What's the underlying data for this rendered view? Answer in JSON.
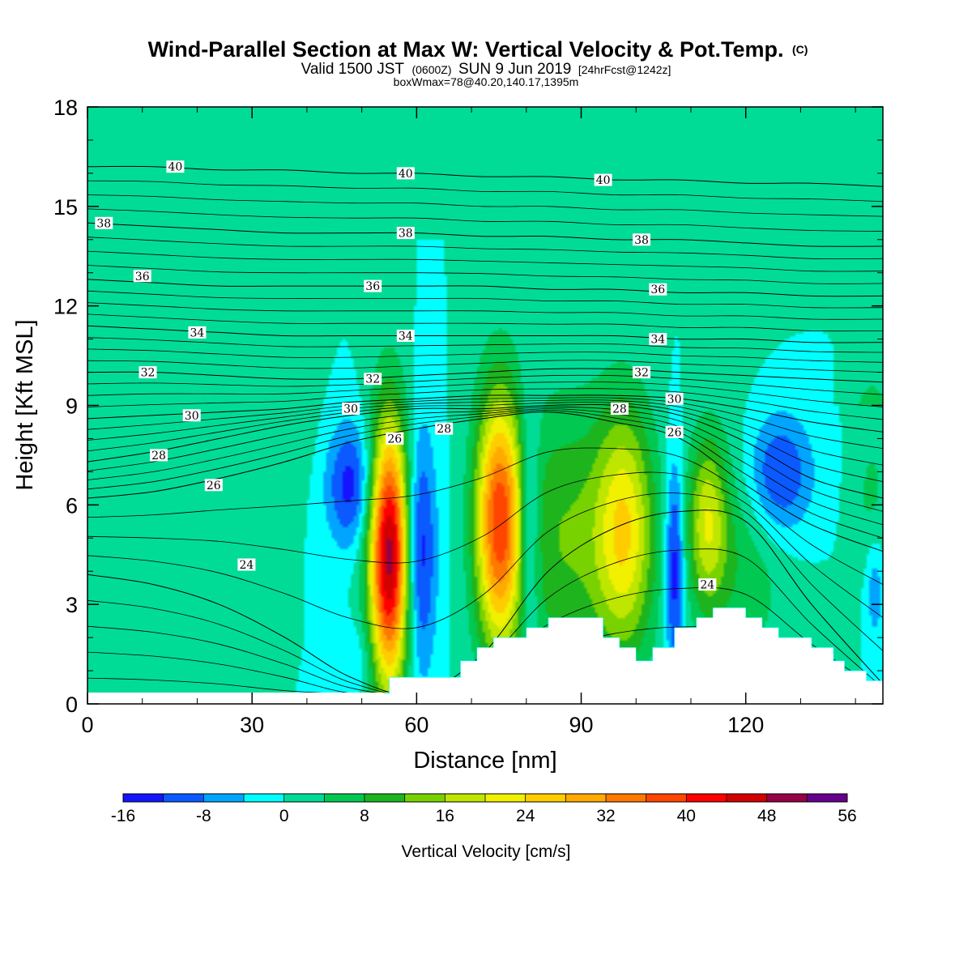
{
  "header": {
    "title": "Wind-Parallel Section at Max W: Vertical Velocity & Pot.Temp.",
    "title_mark": "(C)",
    "valid_prefix": "Valid 1500 JST",
    "valid_zulu": "(0600Z)",
    "valid_date": "SUN 9 Jun 2019",
    "forecast": "[24hrFcst@1242z]",
    "box_info": "boxWmax=78@40.20,140.17,1395m"
  },
  "chart_data": {
    "type": "heatmap",
    "title": "Wind-Parallel Section at Max W: Vertical Velocity & Pot.Temp.",
    "xlabel": "Distance [nm]",
    "ylabel": "Height [Kft MSL]",
    "xlim": [
      0,
      145
    ],
    "ylim": [
      0,
      18
    ],
    "x_ticks": [
      0,
      30,
      60,
      90,
      120
    ],
    "y_ticks": [
      0,
      3,
      6,
      9,
      12,
      15,
      18
    ],
    "colorbar": {
      "title": "Vertical Velocity [cm/s]",
      "ticks": [
        -16,
        -8,
        0,
        8,
        16,
        24,
        32,
        40,
        48,
        56
      ],
      "levels": [
        -16,
        -12,
        -8,
        -4,
        0,
        4,
        8,
        12,
        16,
        20,
        24,
        28,
        32,
        36,
        40,
        44,
        48,
        52,
        56
      ],
      "colors": [
        "#1414ff",
        "#0a5aff",
        "#00a5ff",
        "#00ffff",
        "#00dc96",
        "#00c850",
        "#1eb41e",
        "#78d200",
        "#bee600",
        "#f0f000",
        "#ffcc00",
        "#ffaa00",
        "#ff7800",
        "#ff4600",
        "#ff0000",
        "#d20000",
        "#960046",
        "#64008c"
      ]
    },
    "theta_contours": [
      {
        "value": 24,
        "heights": [
          3.9,
          3.6,
          3.0,
          2.0,
          0.8,
          0.3,
          1.5,
          4.0,
          5.3,
          5.8,
          5.5,
          3.0,
          0.6
        ]
      },
      {
        "value": 26,
        "heights": [
          6.2,
          6.4,
          6.8,
          7.3,
          7.9,
          8.3,
          8.6,
          8.8,
          8.5,
          8.0,
          6.6,
          5.4,
          4.6
        ]
      },
      {
        "value": 28,
        "heights": [
          7.3,
          7.6,
          8.0,
          8.4,
          8.7,
          8.9,
          8.9,
          9.0,
          9.0,
          8.7,
          7.9,
          6.8,
          6.2
        ]
      },
      {
        "value": 30,
        "heights": [
          8.6,
          8.7,
          8.8,
          8.9,
          9.1,
          9.2,
          9.3,
          9.3,
          9.3,
          9.2,
          8.9,
          8.5,
          8.2
        ]
      },
      {
        "value": 32,
        "heights": [
          10.0,
          10.0,
          9.9,
          9.8,
          9.8,
          9.9,
          10.0,
          10.1,
          10.1,
          10.0,
          9.9,
          9.8,
          9.7
        ]
      },
      {
        "value": 34,
        "heights": [
          11.4,
          11.3,
          11.2,
          11.1,
          11.1,
          11.1,
          11.1,
          11.1,
          11.1,
          11.0,
          11.0,
          10.9,
          10.9
        ]
      },
      {
        "value": 36,
        "heights": [
          12.8,
          12.7,
          12.6,
          12.6,
          12.6,
          12.6,
          12.6,
          12.5,
          12.5,
          12.4,
          12.4,
          12.3,
          12.3
        ]
      },
      {
        "value": 38,
        "heights": [
          14.5,
          14.4,
          14.3,
          14.2,
          14.2,
          14.2,
          14.1,
          14.1,
          14.0,
          14.0,
          13.9,
          13.8,
          13.8
        ]
      },
      {
        "value": 40,
        "heights": [
          16.2,
          16.2,
          16.1,
          16.1,
          16.0,
          16.0,
          15.9,
          15.9,
          15.8,
          15.8,
          15.7,
          15.7,
          15.6
        ]
      }
    ],
    "theta_x": [
      0,
      12,
      24,
      36,
      48,
      60,
      72,
      84,
      96,
      108,
      120,
      132,
      145
    ],
    "theta_labels": [
      {
        "text": "40",
        "x": 16,
        "y": 16.2
      },
      {
        "text": "40",
        "x": 58,
        "y": 16.0
      },
      {
        "text": "40",
        "x": 94,
        "y": 15.8
      },
      {
        "text": "38",
        "x": 3,
        "y": 14.5
      },
      {
        "text": "38",
        "x": 58,
        "y": 14.2
      },
      {
        "text": "38",
        "x": 101,
        "y": 14.0
      },
      {
        "text": "36",
        "x": 10,
        "y": 12.9
      },
      {
        "text": "36",
        "x": 52,
        "y": 12.6
      },
      {
        "text": "36",
        "x": 104,
        "y": 12.5
      },
      {
        "text": "34",
        "x": 20,
        "y": 11.2
      },
      {
        "text": "34",
        "x": 58,
        "y": 11.1
      },
      {
        "text": "34",
        "x": 104,
        "y": 11.0
      },
      {
        "text": "32",
        "x": 11,
        "y": 10.0
      },
      {
        "text": "32",
        "x": 52,
        "y": 9.8
      },
      {
        "text": "32",
        "x": 101,
        "y": 10.0
      },
      {
        "text": "30",
        "x": 19,
        "y": 8.7
      },
      {
        "text": "30",
        "x": 48,
        "y": 8.9
      },
      {
        "text": "30",
        "x": 107,
        "y": 9.2
      },
      {
        "text": "28",
        "x": 13,
        "y": 7.5
      },
      {
        "text": "28",
        "x": 65,
        "y": 8.3
      },
      {
        "text": "28",
        "x": 97,
        "y": 8.9
      },
      {
        "text": "26",
        "x": 23,
        "y": 6.6
      },
      {
        "text": "26",
        "x": 56,
        "y": 8.0
      },
      {
        "text": "26",
        "x": 107,
        "y": 8.2
      },
      {
        "text": "24",
        "x": 29,
        "y": 4.2
      },
      {
        "text": "24",
        "x": 113,
        "y": 3.6
      }
    ],
    "w_features": [
      {
        "x": 55,
        "y": 4.5,
        "sx": 2.6,
        "sy": 2.8,
        "amp": 50
      },
      {
        "x": 60.5,
        "y": 4.6,
        "sx": 2.1,
        "sy": 2.6,
        "amp": -16
      },
      {
        "x": 48,
        "y": 6.6,
        "sx": 3.2,
        "sy": 1.3,
        "amp": -14
      },
      {
        "x": 50,
        "y": 1.4,
        "sx": 2.5,
        "sy": 0.9,
        "amp": -4
      },
      {
        "x": 75,
        "y": 5.5,
        "sx": 3.0,
        "sy": 2.7,
        "amp": 37
      },
      {
        "x": 80.5,
        "y": 5.4,
        "sx": 1.4,
        "sy": 2.6,
        "amp": -12
      },
      {
        "x": 87,
        "y": 5.0,
        "sx": 7.0,
        "sy": 3.0,
        "amp": 12
      },
      {
        "x": 98,
        "y": 5.2,
        "sx": 3.8,
        "sy": 2.6,
        "amp": 22
      },
      {
        "x": 107,
        "y": 4.1,
        "sx": 1.2,
        "sy": 2.3,
        "amp": -16
      },
      {
        "x": 113,
        "y": 5.5,
        "sx": 2.5,
        "sy": 1.8,
        "amp": 17
      },
      {
        "x": 119,
        "y": 4.3,
        "sx": 6.0,
        "sy": 2.6,
        "amp": 7
      },
      {
        "x": 126,
        "y": 6.9,
        "sx": 4.2,
        "sy": 1.3,
        "amp": -14
      },
      {
        "x": 37,
        "y": 8.6,
        "sx": 3.5,
        "sy": 1.7,
        "amp": 3
      },
      {
        "x": 143.5,
        "y": 3.5,
        "sx": 1.3,
        "sy": 1.2,
        "amp": -8
      },
      {
        "x": 143,
        "y": 6.0,
        "sx": 2.5,
        "sy": 2.0,
        "amp": 5
      }
    ],
    "upper_green": [
      {
        "x0": 0,
        "x1": 6,
        "bottom": 18
      },
      {
        "x0": 6,
        "x1": 36,
        "bottom": 13.0
      },
      {
        "x0": 36,
        "x1": 40,
        "bottom": 16.8
      },
      {
        "x0": 40,
        "x1": 57,
        "bottom": 13.5
      },
      {
        "x0": 57,
        "x1": 68,
        "bottom": 14.0
      },
      {
        "x0": 68,
        "x1": 70,
        "bottom": 17.2
      },
      {
        "x0": 70,
        "x1": 83,
        "bottom": 18
      },
      {
        "x0": 83,
        "x1": 86,
        "bottom": 15.0
      },
      {
        "x0": 86,
        "x1": 93,
        "bottom": 18
      },
      {
        "x0": 93,
        "x1": 114,
        "bottom": 14.0
      },
      {
        "x0": 114,
        "x1": 121,
        "bottom": 18
      },
      {
        "x0": 121,
        "x1": 136,
        "bottom": 12.0
      },
      {
        "x0": 136,
        "x1": 145,
        "bottom": 9.0
      }
    ],
    "terrain": [
      [
        54,
        0.3
      ],
      [
        55,
        0.3
      ],
      [
        55,
        0.8
      ],
      [
        64,
        0.8
      ],
      [
        68,
        0.8
      ],
      [
        68,
        1.3
      ],
      [
        71,
        1.3
      ],
      [
        71,
        1.7
      ],
      [
        74,
        1.7
      ],
      [
        74,
        2.0
      ],
      [
        80,
        2.0
      ],
      [
        80,
        2.3
      ],
      [
        84,
        2.3
      ],
      [
        84,
        2.6
      ],
      [
        94,
        2.6
      ],
      [
        94,
        2.0
      ],
      [
        97,
        2.0
      ],
      [
        97,
        1.7
      ],
      [
        100,
        1.7
      ],
      [
        100,
        1.3
      ],
      [
        103,
        1.3
      ],
      [
        103,
        1.7
      ],
      [
        107,
        1.7
      ],
      [
        107,
        2.3
      ],
      [
        111,
        2.3
      ],
      [
        111,
        2.6
      ],
      [
        114,
        2.6
      ],
      [
        114,
        2.9
      ],
      [
        120,
        2.9
      ],
      [
        120,
        2.6
      ],
      [
        123,
        2.6
      ],
      [
        123,
        2.3
      ],
      [
        126,
        2.3
      ],
      [
        126,
        2.0
      ],
      [
        132,
        2.0
      ],
      [
        132,
        1.7
      ],
      [
        136,
        1.7
      ],
      [
        136,
        1.3
      ],
      [
        138,
        1.3
      ],
      [
        138,
        1.0
      ],
      [
        142,
        1.0
      ],
      [
        142,
        0.7
      ],
      [
        145,
        0.7
      ]
    ]
  }
}
